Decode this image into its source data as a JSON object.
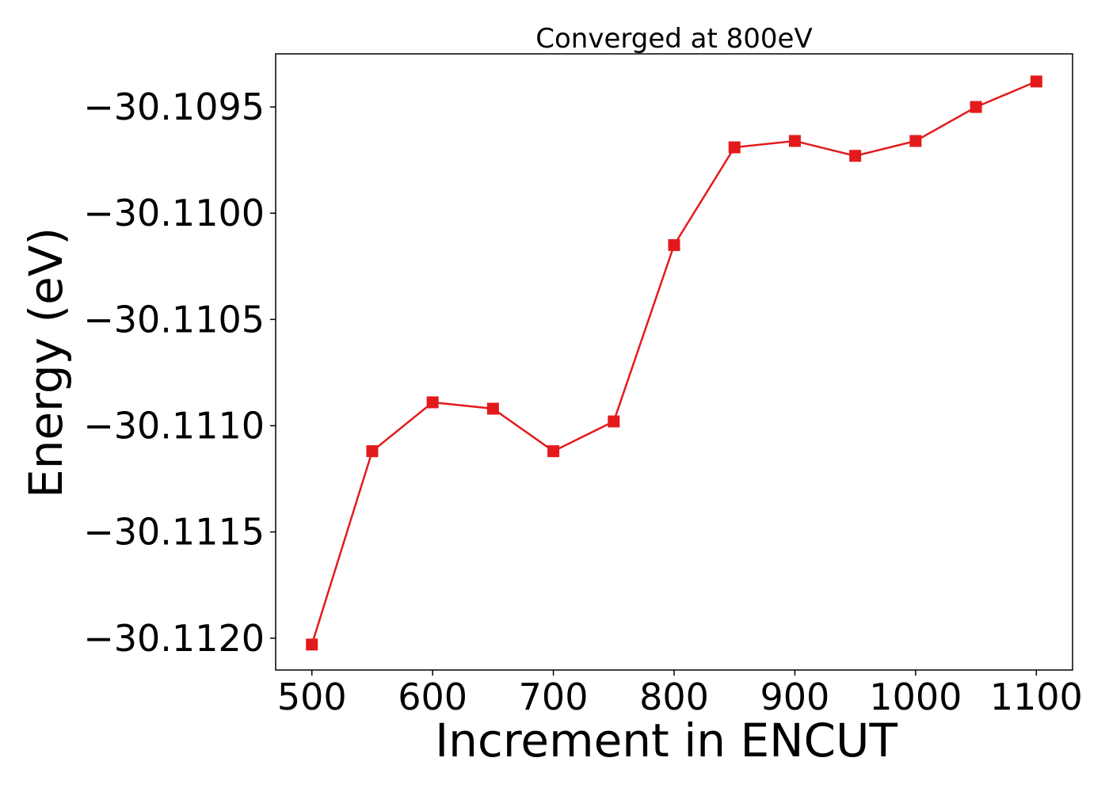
{
  "chart_data": {
    "type": "line",
    "title": "Converged at 800eV",
    "xlabel": "Increment in ENCUT",
    "ylabel": "Energy (eV)",
    "xlim": [
      470,
      1130
    ],
    "ylim": [
      -30.11215,
      -30.10925
    ],
    "xticks": [
      500,
      600,
      700,
      800,
      900,
      1000,
      1100
    ],
    "yticks": [
      -30.1095,
      -30.11,
      -30.1105,
      -30.111,
      -30.1115,
      -30.112
    ],
    "ytick_labels": [
      "−30.1095",
      "−30.1100",
      "−30.1105",
      "−30.1110",
      "−30.1115",
      "−30.1120"
    ],
    "grid": false,
    "series": [
      {
        "color": "#e31a1c",
        "marker": "square",
        "x": [
          500,
          550,
          600,
          650,
          700,
          750,
          800,
          850,
          900,
          950,
          1000,
          1050,
          1100
        ],
        "y": [
          -30.11203,
          -30.11112,
          -30.11089,
          -30.11092,
          -30.11112,
          -30.11098,
          -30.11015,
          -30.10969,
          -30.10966,
          -30.10973,
          -30.10966,
          -30.1095,
          -30.10938
        ]
      }
    ]
  }
}
